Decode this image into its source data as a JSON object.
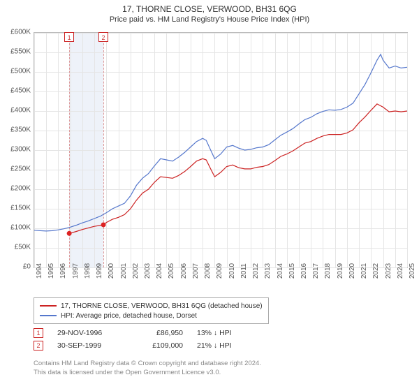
{
  "title": "17, THORNE CLOSE, VERWOOD, BH31 6QG",
  "subtitle": "Price paid vs. HM Land Registry's House Price Index (HPI)",
  "chart": {
    "type": "line",
    "background_color": "#ffffff",
    "grid_color": "#e5e5e5",
    "axis_color": "#bbbbbb",
    "x_years": [
      1994,
      1995,
      1996,
      1997,
      1998,
      1999,
      2000,
      2001,
      2002,
      2003,
      2004,
      2005,
      2006,
      2007,
      2008,
      2009,
      2010,
      2011,
      2012,
      2013,
      2014,
      2015,
      2016,
      2017,
      2018,
      2019,
      2020,
      2021,
      2022,
      2023,
      2024,
      2025
    ],
    "xlim": [
      1994,
      2025
    ],
    "ylim": [
      0,
      600000
    ],
    "ytick_step": 50000,
    "y_prefix": "£",
    "y_suffix": "K",
    "band": {
      "start": 1996.91,
      "end": 1999.75,
      "color": "#eef2f9"
    },
    "vlines": [
      1996.91,
      1999.75
    ],
    "vline_color": "#dd9999",
    "series": [
      {
        "name": "17, THORNE CLOSE, VERWOOD, BH31 6QG (detached house)",
        "color": "#cc2222",
        "line_width": 1.3,
        "points": [
          [
            1996.91,
            86950
          ],
          [
            1997.5,
            92000
          ],
          [
            1998.0,
            97000
          ],
          [
            1998.5,
            101000
          ],
          [
            1999.0,
            105000
          ],
          [
            1999.75,
            109000
          ],
          [
            2000.0,
            115000
          ],
          [
            2000.5,
            123000
          ],
          [
            2001.0,
            128000
          ],
          [
            2001.5,
            135000
          ],
          [
            2002.0,
            150000
          ],
          [
            2002.5,
            172000
          ],
          [
            2003.0,
            190000
          ],
          [
            2003.5,
            200000
          ],
          [
            2004.0,
            218000
          ],
          [
            2004.5,
            232000
          ],
          [
            2005.0,
            230000
          ],
          [
            2005.5,
            228000
          ],
          [
            2006.0,
            235000
          ],
          [
            2006.5,
            245000
          ],
          [
            2007.0,
            258000
          ],
          [
            2007.5,
            272000
          ],
          [
            2008.0,
            278000
          ],
          [
            2008.3,
            275000
          ],
          [
            2008.7,
            250000
          ],
          [
            2009.0,
            232000
          ],
          [
            2009.5,
            243000
          ],
          [
            2010.0,
            258000
          ],
          [
            2010.5,
            262000
          ],
          [
            2011.0,
            255000
          ],
          [
            2011.5,
            252000
          ],
          [
            2012.0,
            252000
          ],
          [
            2012.5,
            256000
          ],
          [
            2013.0,
            258000
          ],
          [
            2013.5,
            263000
          ],
          [
            2014.0,
            273000
          ],
          [
            2014.5,
            284000
          ],
          [
            2015.0,
            290000
          ],
          [
            2015.5,
            298000
          ],
          [
            2016.0,
            308000
          ],
          [
            2016.5,
            318000
          ],
          [
            2017.0,
            322000
          ],
          [
            2017.5,
            330000
          ],
          [
            2018.0,
            336000
          ],
          [
            2018.5,
            340000
          ],
          [
            2019.0,
            340000
          ],
          [
            2019.5,
            340000
          ],
          [
            2020.0,
            344000
          ],
          [
            2020.5,
            352000
          ],
          [
            2021.0,
            370000
          ],
          [
            2021.5,
            385000
          ],
          [
            2022.0,
            402000
          ],
          [
            2022.5,
            418000
          ],
          [
            2023.0,
            410000
          ],
          [
            2023.5,
            398000
          ],
          [
            2024.0,
            400000
          ],
          [
            2024.5,
            398000
          ],
          [
            2025.0,
            400000
          ]
        ]
      },
      {
        "name": "HPI: Average price, detached house, Dorset",
        "color": "#5577cc",
        "line_width": 1.1,
        "points": [
          [
            1994.0,
            95000
          ],
          [
            1994.5,
            94000
          ],
          [
            1995.0,
            93000
          ],
          [
            1995.5,
            94000
          ],
          [
            1996.0,
            96000
          ],
          [
            1996.5,
            99000
          ],
          [
            1997.0,
            103000
          ],
          [
            1997.5,
            108000
          ],
          [
            1998.0,
            114000
          ],
          [
            1998.5,
            119000
          ],
          [
            1999.0,
            125000
          ],
          [
            1999.5,
            131000
          ],
          [
            2000.0,
            140000
          ],
          [
            2000.5,
            150000
          ],
          [
            2001.0,
            157000
          ],
          [
            2001.5,
            164000
          ],
          [
            2002.0,
            183000
          ],
          [
            2002.5,
            210000
          ],
          [
            2003.0,
            228000
          ],
          [
            2003.5,
            240000
          ],
          [
            2004.0,
            260000
          ],
          [
            2004.5,
            278000
          ],
          [
            2005.0,
            275000
          ],
          [
            2005.5,
            272000
          ],
          [
            2006.0,
            282000
          ],
          [
            2006.5,
            294000
          ],
          [
            2007.0,
            308000
          ],
          [
            2007.5,
            322000
          ],
          [
            2008.0,
            330000
          ],
          [
            2008.3,
            325000
          ],
          [
            2008.7,
            298000
          ],
          [
            2009.0,
            278000
          ],
          [
            2009.5,
            290000
          ],
          [
            2010.0,
            308000
          ],
          [
            2010.5,
            312000
          ],
          [
            2011.0,
            305000
          ],
          [
            2011.5,
            300000
          ],
          [
            2012.0,
            302000
          ],
          [
            2012.5,
            306000
          ],
          [
            2013.0,
            308000
          ],
          [
            2013.5,
            314000
          ],
          [
            2014.0,
            326000
          ],
          [
            2014.5,
            338000
          ],
          [
            2015.0,
            346000
          ],
          [
            2015.5,
            355000
          ],
          [
            2016.0,
            367000
          ],
          [
            2016.5,
            378000
          ],
          [
            2017.0,
            384000
          ],
          [
            2017.5,
            393000
          ],
          [
            2018.0,
            399000
          ],
          [
            2018.5,
            403000
          ],
          [
            2019.0,
            402000
          ],
          [
            2019.5,
            404000
          ],
          [
            2020.0,
            410000
          ],
          [
            2020.5,
            420000
          ],
          [
            2021.0,
            444000
          ],
          [
            2021.5,
            468000
          ],
          [
            2022.0,
            498000
          ],
          [
            2022.5,
            530000
          ],
          [
            2022.8,
            545000
          ],
          [
            2023.0,
            530000
          ],
          [
            2023.5,
            510000
          ],
          [
            2024.0,
            515000
          ],
          [
            2024.5,
            510000
          ],
          [
            2025.0,
            512000
          ]
        ]
      }
    ],
    "sales": [
      {
        "badge": "1",
        "year": 1996.91,
        "price": 86950,
        "color": "#cc2222"
      },
      {
        "badge": "2",
        "year": 1999.75,
        "price": 109000,
        "color": "#cc2222"
      }
    ]
  },
  "legend": {
    "items": [
      {
        "label": "17, THORNE CLOSE, VERWOOD, BH31 6QG (detached house)",
        "color": "#cc2222"
      },
      {
        "label": "HPI: Average price, detached house, Dorset",
        "color": "#5577cc"
      }
    ]
  },
  "transactions": [
    {
      "badge": "1",
      "date": "29-NOV-1996",
      "price": "£86,950",
      "pct": "13% ↓ HPI",
      "color": "#cc2222"
    },
    {
      "badge": "2",
      "date": "30-SEP-1999",
      "price": "£109,000",
      "pct": "21% ↓ HPI",
      "color": "#cc2222"
    }
  ],
  "footnote_lines": [
    "Contains HM Land Registry data © Crown copyright and database right 2024.",
    "This data is licensed under the Open Government Licence v3.0."
  ]
}
